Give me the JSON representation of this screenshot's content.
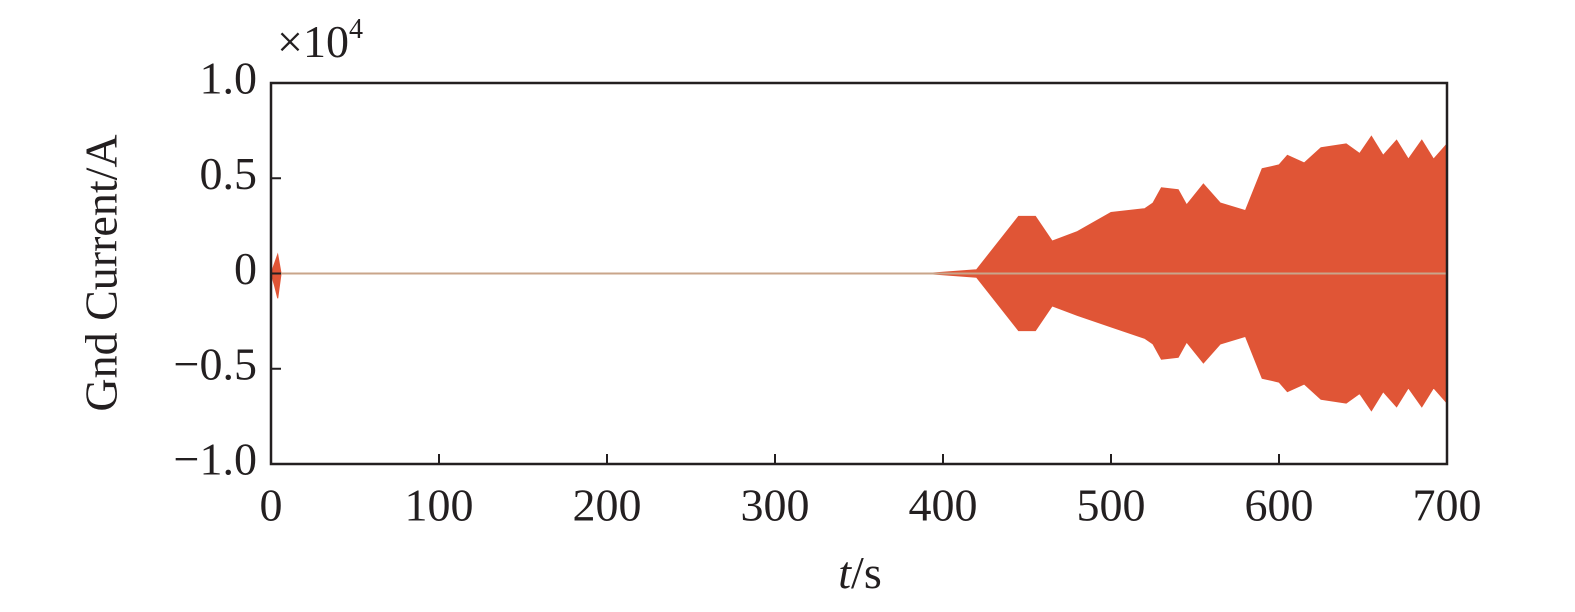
{
  "chart_data": {
    "type": "area",
    "ylabel": "Gnd Current/A",
    "xlabel": {
      "variable": "t",
      "unit": "/s"
    },
    "y_multiplier": {
      "base": "×10",
      "exponent": "4"
    },
    "x": [
      0,
      2,
      4,
      6,
      390,
      420,
      445,
      455,
      465,
      480,
      500,
      520,
      525,
      530,
      540,
      545,
      555,
      565,
      580,
      590,
      600,
      605,
      615,
      625,
      640,
      648,
      655,
      662,
      670,
      677,
      685,
      692,
      700
    ],
    "series": [
      {
        "color": "#e05536",
        "values": [
          0,
          0.05,
          0.1,
          0,
          0,
          0.02,
          0.3,
          0.3,
          0.17,
          0.22,
          0.32,
          0.34,
          0.37,
          0.45,
          0.44,
          0.36,
          0.47,
          0.37,
          0.33,
          0.55,
          0.57,
          0.62,
          0.58,
          0.66,
          0.68,
          0.63,
          0.72,
          0.62,
          0.7,
          0.6,
          0.7,
          0.6,
          0.68
        ]
      },
      {
        "color": "#e05536",
        "values": [
          0,
          -0.06,
          -0.13,
          0,
          0,
          -0.02,
          -0.3,
          -0.3,
          -0.17,
          -0.22,
          -0.28,
          -0.34,
          -0.37,
          -0.45,
          -0.44,
          -0.36,
          -0.47,
          -0.37,
          -0.33,
          -0.55,
          -0.57,
          -0.62,
          -0.58,
          -0.66,
          -0.68,
          -0.63,
          -0.72,
          -0.62,
          -0.7,
          -0.6,
          -0.7,
          -0.6,
          -0.68
        ]
      }
    ],
    "xlim": [
      0,
      700
    ],
    "xticks": [
      0,
      100,
      200,
      300,
      400,
      500,
      600,
      700
    ],
    "ylim": [
      -1,
      1
    ],
    "yticks": [
      {
        "value": -1,
        "label": "−1.0"
      },
      {
        "value": -0.5,
        "label": "−0.5"
      },
      0,
      0.5,
      {
        "value": 1,
        "label": "1.0"
      }
    ]
  }
}
